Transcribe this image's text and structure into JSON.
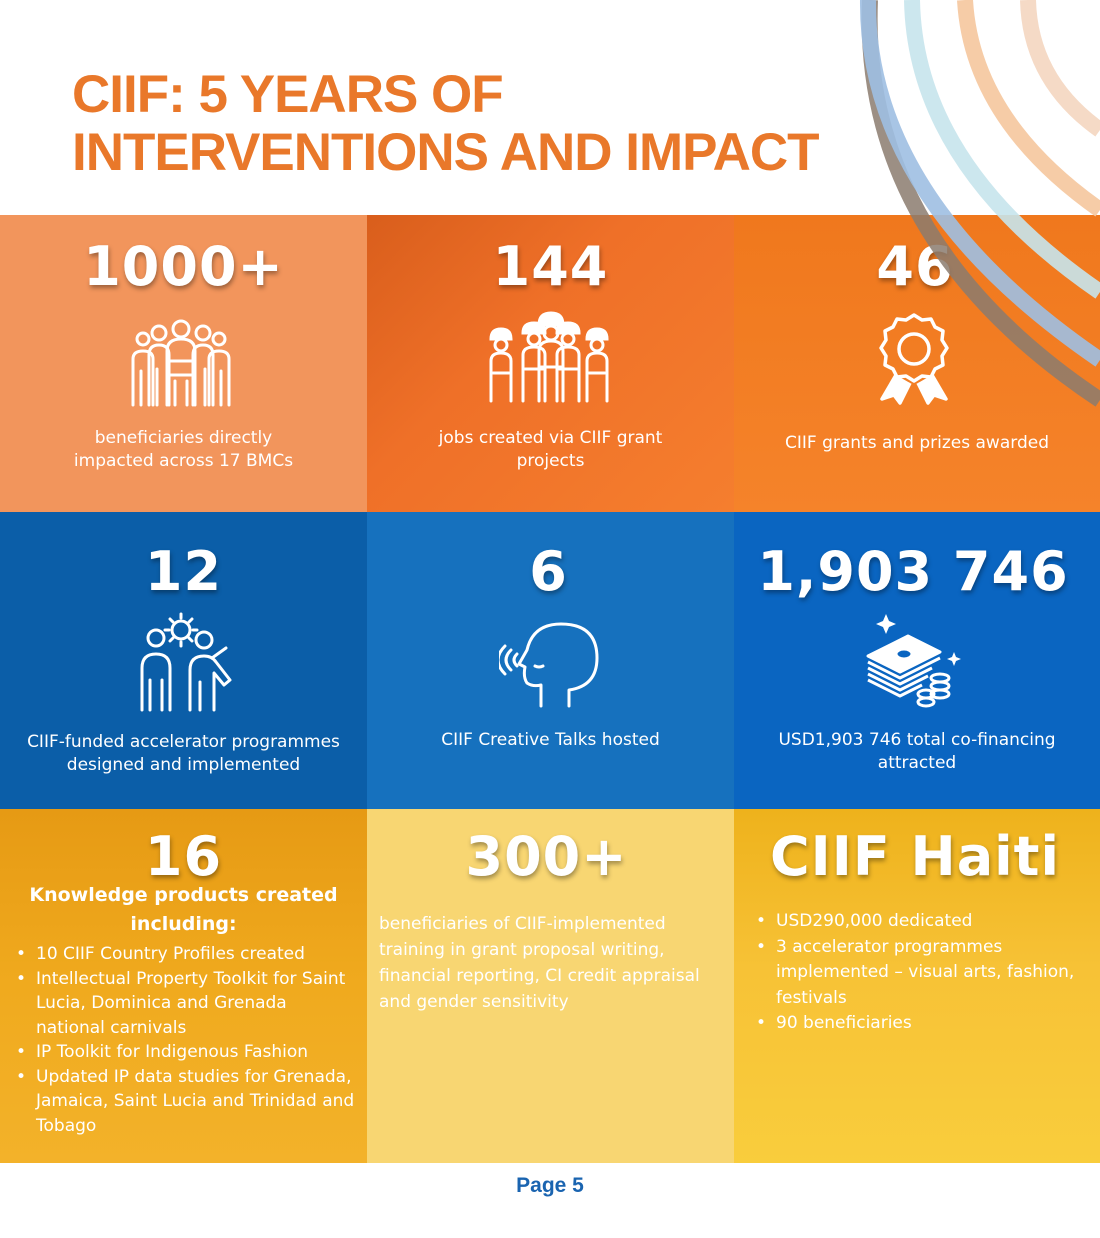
{
  "header": {
    "title_line1": "CIIF: 5 YEARS OF",
    "title_line2": "INTERVENTIONS AND IMPACT"
  },
  "colors": {
    "title": "#e9782a",
    "peach": "#f2955c",
    "orange": "#ef7028",
    "orange_dark": "#f0781d",
    "blue_dark": "#0b5ea8",
    "blue": "#1671be",
    "blue_bright": "#0a65c1",
    "gold": "#f0aa1e",
    "yellow_light": "#f8d672",
    "yellow": "#f7c236",
    "page_label": "#1a64b0"
  },
  "stats": [
    {
      "value": "1000+",
      "icon": "people-group-icon",
      "label": "beneficiaries directly impacted across 17 BMCs"
    },
    {
      "value": "144",
      "icon": "workers-icon",
      "label": "jobs created via CIIF grant projects"
    },
    {
      "value": "46",
      "icon": "award-ribbon-icon",
      "label": "CIIF grants and prizes awarded"
    },
    {
      "value": "12",
      "icon": "collaboration-gear-icon",
      "label": "CIIF-funded accelerator programmes designed and implemented"
    },
    {
      "value": "6",
      "icon": "speaking-head-icon",
      "label": "CIIF Creative Talks hosted"
    },
    {
      "value": "1,903 746",
      "icon": "money-stack-icon",
      "label": "USD1,903 746 total co-financing attracted"
    }
  ],
  "knowledge": {
    "value": "16",
    "subtitle_line1": "Knowledge products created",
    "subtitle_line2": "including:",
    "items": [
      "10 CIIF Country Profiles created",
      "Intellectual Property Toolkit for Saint Lucia, Dominica and Grenada national carnivals",
      "IP Toolkit for Indigenous Fashion",
      "Updated IP data studies for Grenada, Jamaica, Saint Lucia and Trinidad and Tobago"
    ]
  },
  "training": {
    "value": "300+",
    "label": "beneficiaries of CIIF-implemented training in grant proposal writing, financial reporting, CI credit appraisal and gender sensitivity"
  },
  "haiti": {
    "title": "CIIF Haiti",
    "items": [
      "USD290,000 dedicated",
      "3 accelerator programmes implemented – visual arts, fashion, festivals",
      "90 beneficiaries"
    ]
  },
  "footer": {
    "page_label": "Page 5"
  }
}
